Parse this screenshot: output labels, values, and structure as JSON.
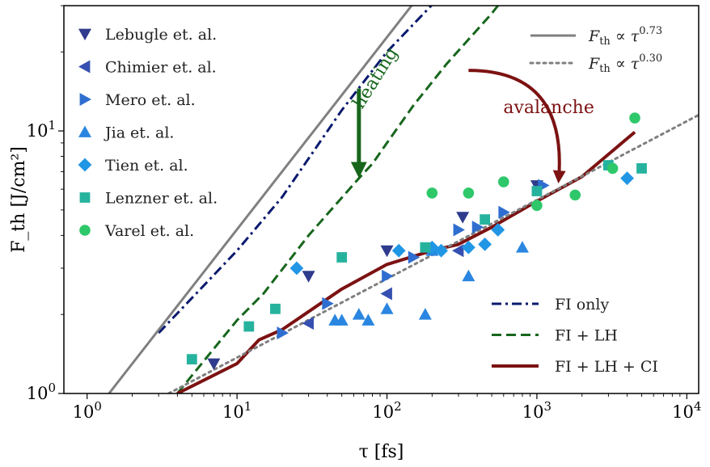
{
  "chart_data": {
    "type": "scatter",
    "xscale": "log",
    "yscale": "log",
    "xlim": [
      0.7,
      12000
    ],
    "ylim": [
      1.0,
      30
    ],
    "xlabel": "τ [fs]",
    "ylabel": "F_th [J/cm²]",
    "x_ticks": [
      {
        "value": 1,
        "base": "10",
        "exp": "0"
      },
      {
        "value": 10,
        "base": "10",
        "exp": "1"
      },
      {
        "value": 100,
        "base": "10",
        "exp": "2"
      },
      {
        "value": 1000,
        "base": "10",
        "exp": "3"
      },
      {
        "value": 10000,
        "base": "10",
        "exp": "4"
      }
    ],
    "y_ticks": [
      {
        "value": 1,
        "base": "10",
        "exp": "0"
      },
      {
        "value": 10,
        "base": "10",
        "exp": "1"
      }
    ],
    "grid": false,
    "legend_left_position": "top-left",
    "legend_right_top_position": "top-right",
    "legend_right_bottom_position": "bottom-right",
    "scatter_series": [
      {
        "name": "Lebugle et. al.",
        "marker": "triangle-down",
        "color": "#2f3b8c",
        "points": [
          [
            7,
            1.3
          ],
          [
            30,
            2.8
          ],
          [
            100,
            3.5
          ],
          [
            320,
            4.7
          ],
          [
            1000,
            6.2
          ]
        ]
      },
      {
        "name": "Chimier et. al.",
        "marker": "triangle-left",
        "color": "#3550b0",
        "points": [
          [
            30,
            1.85
          ],
          [
            100,
            2.4
          ],
          [
            300,
            3.5
          ]
        ]
      },
      {
        "name": "Mero et. al.",
        "marker": "triangle-right",
        "color": "#2f6ed0",
        "points": [
          [
            20,
            1.7
          ],
          [
            40,
            2.2
          ],
          [
            100,
            2.8
          ],
          [
            150,
            3.3
          ],
          [
            300,
            4.2
          ],
          [
            400,
            4.3
          ],
          [
            600,
            4.9
          ],
          [
            1100,
            6.2
          ]
        ]
      },
      {
        "name": "Jia et. al.",
        "marker": "triangle-up",
        "color": "#2a86e0",
        "points": [
          [
            45,
            1.9
          ],
          [
            50,
            1.9
          ],
          [
            65,
            2.0
          ],
          [
            75,
            1.9
          ],
          [
            100,
            2.1
          ],
          [
            180,
            2.0
          ],
          [
            200,
            3.5
          ],
          [
            350,
            2.8
          ],
          [
            800,
            3.6
          ]
        ]
      },
      {
        "name": "Tien et. al.",
        "marker": "diamond",
        "color": "#2196e4",
        "points": [
          [
            25,
            3.0
          ],
          [
            120,
            3.5
          ],
          [
            200,
            3.6
          ],
          [
            230,
            3.5
          ],
          [
            350,
            3.6
          ],
          [
            450,
            3.7
          ],
          [
            550,
            4.2
          ],
          [
            4000,
            6.6
          ]
        ]
      },
      {
        "name": "Lenzner et. al.",
        "marker": "square",
        "color": "#26b39e",
        "points": [
          [
            5,
            1.35
          ],
          [
            12,
            1.8
          ],
          [
            18,
            2.1
          ],
          [
            50,
            3.3
          ],
          [
            180,
            3.6
          ],
          [
            450,
            4.6
          ],
          [
            1000,
            5.9
          ],
          [
            3000,
            7.4
          ],
          [
            5000,
            7.2
          ]
        ]
      },
      {
        "name": "Varel et. al.",
        "marker": "circle",
        "color": "#2ec86a",
        "points": [
          [
            200,
            5.8
          ],
          [
            350,
            5.8
          ],
          [
            600,
            6.4
          ],
          [
            1000,
            5.2
          ],
          [
            1800,
            5.7
          ],
          [
            3200,
            7.2
          ],
          [
            4500,
            11.2
          ]
        ]
      }
    ],
    "line_series": [
      {
        "name": "FI only",
        "style": "dashdot",
        "color": "#0a1a6e",
        "width": 3,
        "points": [
          [
            3,
            1.7
          ],
          [
            10,
            3.5
          ],
          [
            20,
            5.6
          ],
          [
            50,
            12
          ],
          [
            100,
            20
          ],
          [
            220,
            32
          ]
        ]
      },
      {
        "name": "FI + LH",
        "style": "dashed",
        "color": "#17661c",
        "width": 3,
        "points": [
          [
            4,
            1.0
          ],
          [
            10,
            1.9
          ],
          [
            15,
            2.4
          ],
          [
            30,
            4.0
          ],
          [
            65,
            6.6
          ],
          [
            80,
            7.5
          ],
          [
            100,
            9.0
          ],
          [
            150,
            12.5
          ],
          [
            250,
            18
          ],
          [
            500,
            28
          ],
          [
            600,
            32
          ]
        ]
      },
      {
        "name": "FI + LH + CI",
        "style": "solid",
        "color": "#7c1212",
        "width": 4,
        "points": [
          [
            4,
            1.0
          ],
          [
            10,
            1.3
          ],
          [
            14,
            1.6
          ],
          [
            20,
            1.75
          ],
          [
            50,
            2.5
          ],
          [
            100,
            3.1
          ],
          [
            200,
            3.5
          ],
          [
            300,
            3.7
          ],
          [
            500,
            4.3
          ],
          [
            1000,
            5.4
          ],
          [
            2000,
            6.7
          ],
          [
            4500,
            9.9
          ]
        ]
      },
      {
        "name": "F_th ∝ τ^0.73",
        "style": "solid",
        "color": "#808080",
        "width": 3,
        "points": [
          [
            1.4,
            1.0
          ],
          [
            220,
            40.5
          ]
        ]
      },
      {
        "name": "F_th ∝ τ^0.30",
        "style": "dotted",
        "color": "#7f7f7f",
        "width": 3,
        "points": [
          [
            3.5,
            1.0
          ],
          [
            12000,
            11.5
          ]
        ]
      }
    ],
    "legend_left": [
      "Lebugle et. al.",
      "Chimier et. al.",
      "Mero et. al.",
      "Jia et. al.",
      "Tien et. al.",
      "Lenzner et. al.",
      "Varel et. al."
    ],
    "legend_right_top": [
      {
        "base": "F",
        "sub": "th",
        "rel": "∝",
        "tau": "τ",
        "exp": "0.73",
        "color": "#808080",
        "style": "solid"
      },
      {
        "base": "F",
        "sub": "th",
        "rel": "∝",
        "tau": "τ",
        "exp": "0.30",
        "color": "#7f7f7f",
        "style": "dotted"
      }
    ],
    "legend_right_bottom": [
      "FI only",
      "FI + LH",
      "FI + LH + CI"
    ],
    "annotations": [
      {
        "text": "heating",
        "color": "#17661c",
        "at": [
          90,
          15.5
        ],
        "rotation_deg": -58
      },
      {
        "text": "avalanche",
        "color": "#7c1212",
        "at": [
          1200,
          11.7
        ]
      }
    ],
    "arrows": [
      {
        "name": "heating-arrow",
        "color": "#17661c",
        "from": [
          65,
          14.5
        ],
        "to": [
          65,
          7.0
        ],
        "curved": false
      },
      {
        "name": "avalanche-arrow",
        "color": "#7c1212",
        "from": [
          350,
          17
        ],
        "to": [
          1400,
          6.6
        ],
        "curved": true
      }
    ]
  }
}
